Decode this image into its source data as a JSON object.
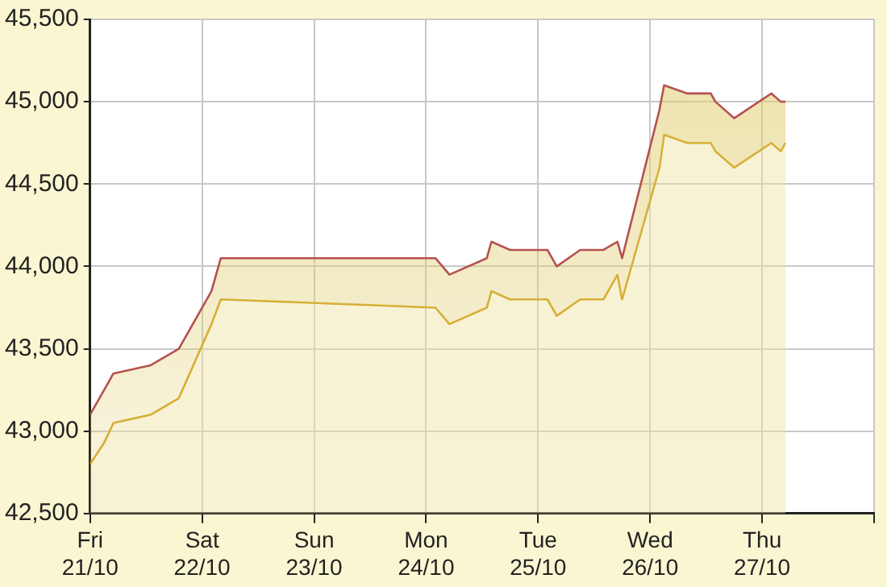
{
  "chart_data": {
    "type": "area",
    "xlim": [
      "--10-21",
      "--10-28"
    ],
    "ylim": [
      42500,
      45500
    ],
    "xticks": [
      {
        "value": "--10-21",
        "label": "Fri\n21/10"
      },
      {
        "value": "--10-22",
        "label": "Sat\n22/10"
      },
      {
        "value": "--10-23",
        "label": "Sun\n23/10"
      },
      {
        "value": "--10-24",
        "label": "Mon\n24/10"
      },
      {
        "value": "--10-25",
        "label": "Tue\n25/10"
      },
      {
        "value": "--10-26",
        "label": "Wed\n26/10"
      },
      {
        "value": "--10-27",
        "label": "Thu\n27/10"
      },
      {
        "value": "--10-28",
        "label": null
      }
    ],
    "yticks": [
      {
        "value": 42500,
        "label": "42,500"
      },
      {
        "value": 43000,
        "label": "43,000"
      },
      {
        "value": 43500,
        "label": "43,500"
      },
      {
        "value": 44000,
        "label": "44,000"
      },
      {
        "value": 44500,
        "label": "44,500"
      },
      {
        "value": 45000,
        "label": "45,000"
      },
      {
        "value": 45500,
        "label": "45,500"
      }
    ],
    "grid": true,
    "legend": false,
    "marker": "none",
    "line_style": "solid",
    "series": [
      {
        "color": "#b5524f",
        "x": [
          "--10-21T00:00",
          "--10-21T03:00",
          "--10-21T05:00",
          "--10-21T13:00",
          "--10-21T19:00",
          "--10-22T02:00",
          "--10-22T04:00",
          "--10-24T02:00",
          "--10-24T05:00",
          "--10-24T13:00",
          "--10-24T14:00",
          "--10-24T18:00",
          "--10-25T02:00",
          "--10-25T04:00",
          "--10-25T09:00",
          "--10-25T14:00",
          "--10-25T17:00",
          "--10-25T18:00",
          "--10-26T02:00",
          "--10-26T03:00",
          "--10-26T08:00",
          "--10-26T13:00",
          "--10-26T14:00",
          "--10-26T18:00",
          "--10-27T02:00",
          "--10-27T04:00",
          "--10-27T05:00"
        ],
        "values": [
          43100,
          43250,
          43350,
          43400,
          43500,
          43850,
          44050,
          44050,
          43950,
          44050,
          44150,
          44100,
          44100,
          44000,
          44100,
          44100,
          44150,
          44050,
          44950,
          45100,
          45050,
          45050,
          45000,
          44900,
          45050,
          45000,
          45000
        ]
      },
      {
        "color": "#d4a82a",
        "x": [
          "--10-21T00:00",
          "--10-21T03:00",
          "--10-21T05:00",
          "--10-21T13:00",
          "--10-21T19:00",
          "--10-22T02:00",
          "--10-22T04:00",
          "--10-24T02:00",
          "--10-24T05:00",
          "--10-24T13:00",
          "--10-24T14:00",
          "--10-24T18:00",
          "--10-25T02:00",
          "--10-25T04:00",
          "--10-25T09:00",
          "--10-25T14:00",
          "--10-25T17:00",
          "--10-25T18:00",
          "--10-26T02:00",
          "--10-26T03:00",
          "--10-26T08:00",
          "--10-26T13:00",
          "--10-26T14:00",
          "--10-26T18:00",
          "--10-27T02:00",
          "--10-27T04:00",
          "--10-27T05:00"
        ],
        "values": [
          42800,
          42930,
          43050,
          43100,
          43200,
          43650,
          43800,
          43750,
          43650,
          43750,
          43850,
          43800,
          43800,
          43700,
          43800,
          43800,
          43950,
          43800,
          44600,
          44800,
          44750,
          44750,
          44700,
          44600,
          44750,
          44700,
          44750
        ]
      }
    ]
  }
}
